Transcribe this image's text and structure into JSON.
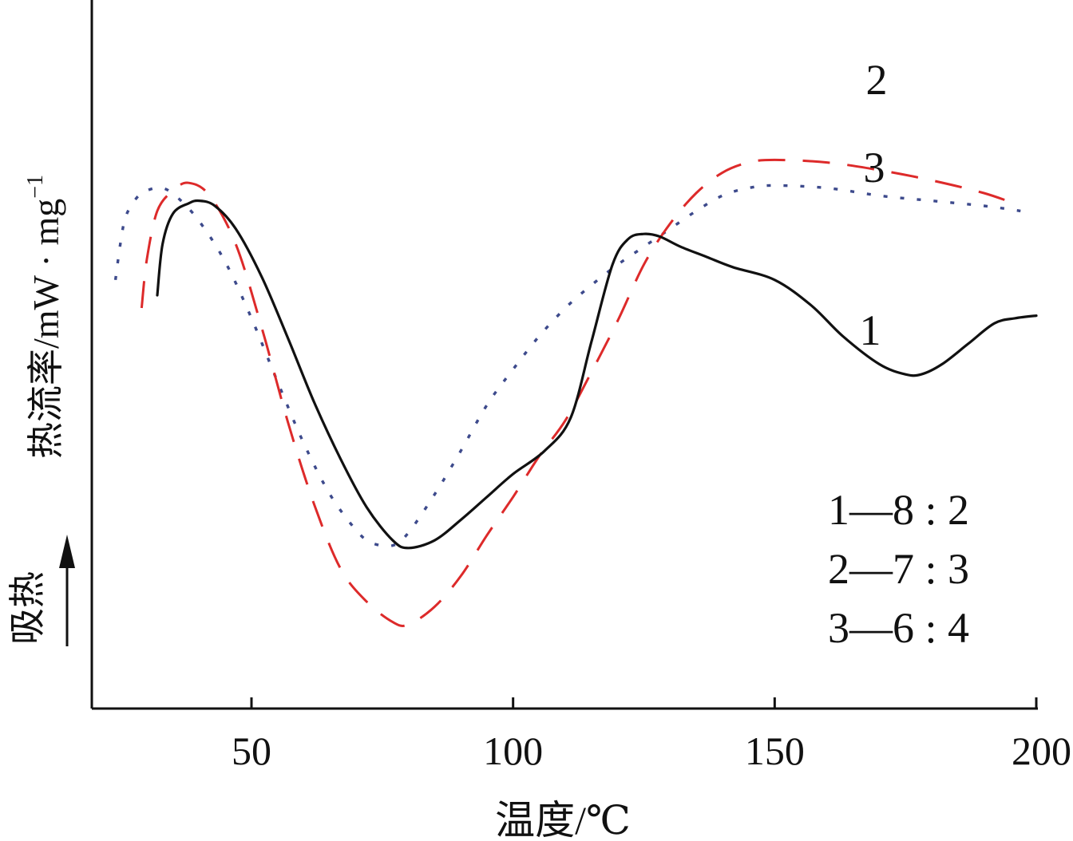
{
  "chart_data": {
    "type": "line",
    "title": "",
    "xlabel": "温度/℃",
    "ylabel": "热流率/mW · mg⁻¹",
    "ylabel_parts": {
      "main": "热流率/mW · mg",
      "sup": "−1"
    },
    "endotherm_label": "吸热",
    "xlim": [
      20,
      200
    ],
    "ylim": [
      0,
      1
    ],
    "x_ticks": [
      50,
      100,
      150,
      200
    ],
    "grid": false,
    "legend_placement": "bottom-right",
    "legend": [
      "1—8 : 2",
      "2—7 : 3",
      "3—6 : 4"
    ],
    "series": [
      {
        "name": "1",
        "ratio": "8 : 2",
        "color": "#111111",
        "style": "solid",
        "x": [
          32,
          33,
          35,
          38,
          40,
          43,
          47,
          52,
          57,
          62,
          67,
          72,
          77,
          80,
          85,
          90,
          95,
          100,
          106,
          111,
          115,
          119,
          122,
          125,
          128,
          132,
          137,
          142,
          150,
          157,
          163,
          170,
          175,
          178,
          182,
          187,
          192,
          196,
          200
        ],
        "y": [
          0.625,
          0.725,
          0.785,
          0.805,
          0.81,
          0.8,
          0.755,
          0.66,
          0.54,
          0.415,
          0.305,
          0.21,
          0.145,
          0.13,
          0.145,
          0.185,
          0.23,
          0.275,
          0.32,
          0.385,
          0.535,
          0.685,
          0.735,
          0.745,
          0.74,
          0.72,
          0.7,
          0.68,
          0.655,
          0.605,
          0.545,
          0.49,
          0.47,
          0.47,
          0.49,
          0.53,
          0.57,
          0.58,
          0.585
        ]
      },
      {
        "name": "2",
        "ratio": "7 : 3",
        "color": "#dd2a2a",
        "style": "dashed",
        "x": [
          29,
          30,
          32,
          35,
          38,
          42,
          47,
          52,
          57,
          62,
          67,
          72,
          77,
          80,
          85,
          90,
          95,
          100,
          105,
          110,
          115,
          120,
          125,
          130,
          135,
          140,
          145,
          150,
          160,
          170,
          180,
          190,
          197
        ],
        "y": [
          0.6,
          0.695,
          0.79,
          0.83,
          0.845,
          0.82,
          0.725,
          0.56,
          0.375,
          0.215,
          0.09,
          0.025,
          -0.015,
          -0.02,
          0.015,
          0.075,
          0.155,
          0.23,
          0.31,
          0.38,
          0.475,
          0.575,
          0.685,
          0.765,
          0.825,
          0.865,
          0.885,
          0.89,
          0.885,
          0.87,
          0.85,
          0.825,
          0.8
        ]
      },
      {
        "name": "3",
        "ratio": "6 : 4",
        "color": "#3d4a8c",
        "style": "dotted",
        "x": [
          24,
          25,
          26,
          28,
          30,
          33,
          36,
          40,
          45,
          50,
          55,
          60,
          65,
          70,
          73,
          77,
          80,
          85,
          90,
          95,
          100,
          105,
          110,
          115,
          120,
          125,
          130,
          135,
          140,
          145,
          150,
          160,
          170,
          180,
          190,
          197
        ],
        "y": [
          0.655,
          0.73,
          0.78,
          0.815,
          0.83,
          0.835,
          0.815,
          0.77,
          0.69,
          0.58,
          0.455,
          0.335,
          0.235,
          0.165,
          0.14,
          0.135,
          0.16,
          0.235,
          0.32,
          0.41,
          0.48,
          0.545,
          0.6,
          0.645,
          0.685,
          0.72,
          0.755,
          0.79,
          0.82,
          0.835,
          0.84,
          0.835,
          0.82,
          0.81,
          0.8,
          0.79
        ]
      }
    ]
  }
}
